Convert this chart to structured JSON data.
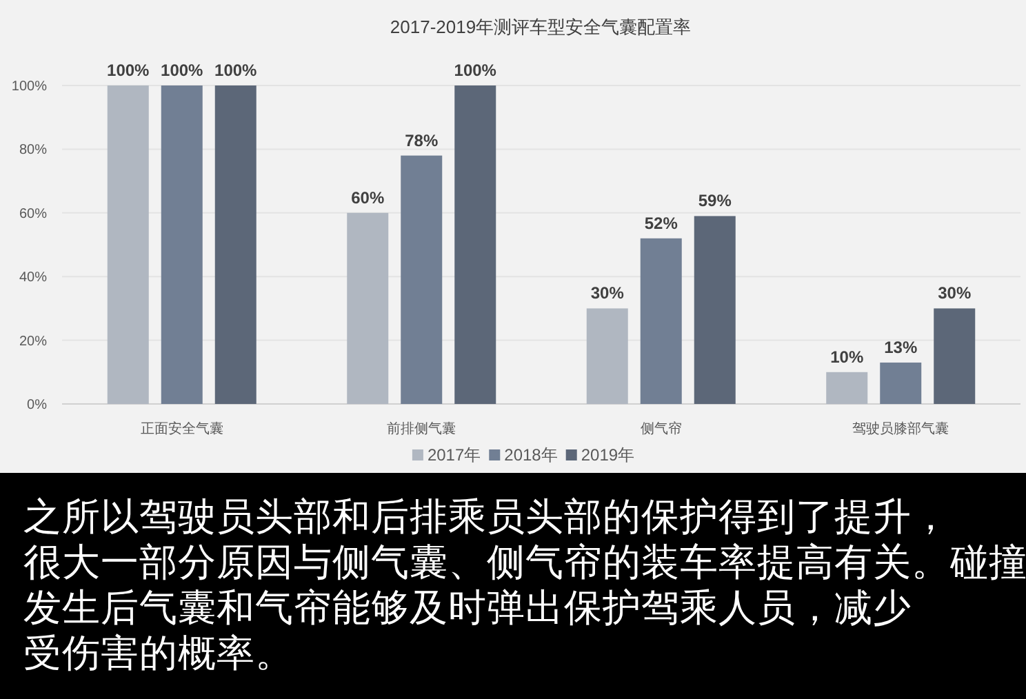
{
  "chart_data": {
    "type": "bar",
    "title": "2017-2019年测评车型安全气囊配置率",
    "categories": [
      "正面安全气囊",
      "前排侧气囊",
      "侧气帘",
      "驾驶员膝部气囊"
    ],
    "series": [
      {
        "name": "2017年",
        "color": "#b0b7c1",
        "values": [
          100,
          60,
          30,
          10
        ],
        "value_labels": [
          "100%",
          "60%",
          "30%",
          "10%"
        ]
      },
      {
        "name": "2018年",
        "color": "#717f94",
        "values": [
          100,
          78,
          52,
          13
        ],
        "value_labels": [
          "100%",
          "78%",
          "52%",
          "13%"
        ]
      },
      {
        "name": "2019年",
        "color": "#5c6778",
        "values": [
          100,
          100,
          59,
          30
        ],
        "value_labels": [
          "100%",
          "100%",
          "59%",
          "30%"
        ]
      }
    ],
    "ylim": [
      0,
      100
    ],
    "yticks": [
      {
        "value": 0,
        "label": "0%"
      },
      {
        "value": 20,
        "label": "20%"
      },
      {
        "value": 40,
        "label": "40%"
      },
      {
        "value": 60,
        "label": "60%"
      },
      {
        "value": 80,
        "label": "80%"
      },
      {
        "value": 100,
        "label": "100%"
      }
    ],
    "grid": "y",
    "legend": "bottom",
    "annotations": [
      "之所以驾驶员头部和后排乘员头部的保护得到了提升，",
      "很大一部分原因与侧气囊、侧气帘的装车率提高有关。碰撞",
      "发生后气囊和气帘能够及时弹出保护驾乘人员，减少",
      "受伤害的概率。"
    ]
  }
}
